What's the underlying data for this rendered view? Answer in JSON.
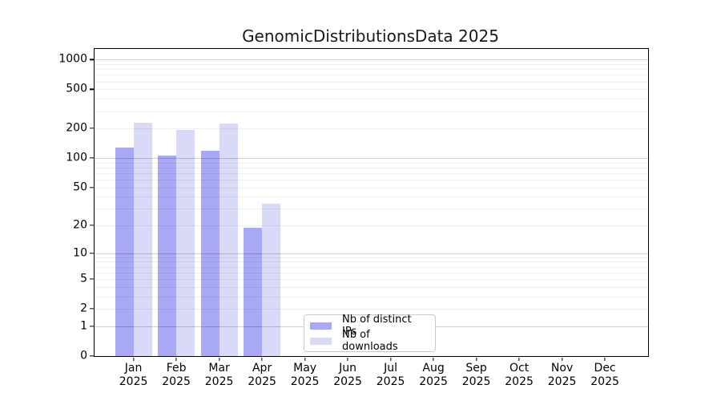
{
  "title": "GenomicDistributionsData 2025",
  "chart_data": {
    "type": "bar",
    "title": "GenomicDistributionsData 2025",
    "categories": [
      "Jan 2025",
      "Feb 2025",
      "Mar 2025",
      "Apr 2025",
      "May 2025",
      "Jun 2025",
      "Jul 2025",
      "Aug 2025",
      "Sep 2025",
      "Oct 2025",
      "Nov 2025",
      "Dec 2025"
    ],
    "series": [
      {
        "name": "Nb of distinct IPs",
        "color": "#a8a8f6",
        "values": [
          127,
          106,
          119,
          19,
          null,
          null,
          null,
          null,
          null,
          null,
          null,
          null
        ]
      },
      {
        "name": "Nb of downloads",
        "color": "#d9d9f8",
        "values": [
          228,
          192,
          226,
          34,
          null,
          null,
          null,
          null,
          null,
          null,
          null,
          null
        ]
      }
    ],
    "xlabel": "",
    "ylabel": "",
    "yscale": "log1p",
    "ytick_values": [
      0,
      1,
      2,
      5,
      10,
      20,
      50,
      100,
      200,
      500,
      1000
    ],
    "ylim": [
      0,
      1280
    ],
    "grid": "horizontal major + minor (log decades), drawn over bars",
    "legend_position": "lower center-left inside plot",
    "colors": {
      "axis": "#000000",
      "major_grid": "#cfcfcf",
      "minor_grid": "#efefef",
      "background": "#ffffff",
      "legend_border": "#c9c9c9"
    }
  }
}
